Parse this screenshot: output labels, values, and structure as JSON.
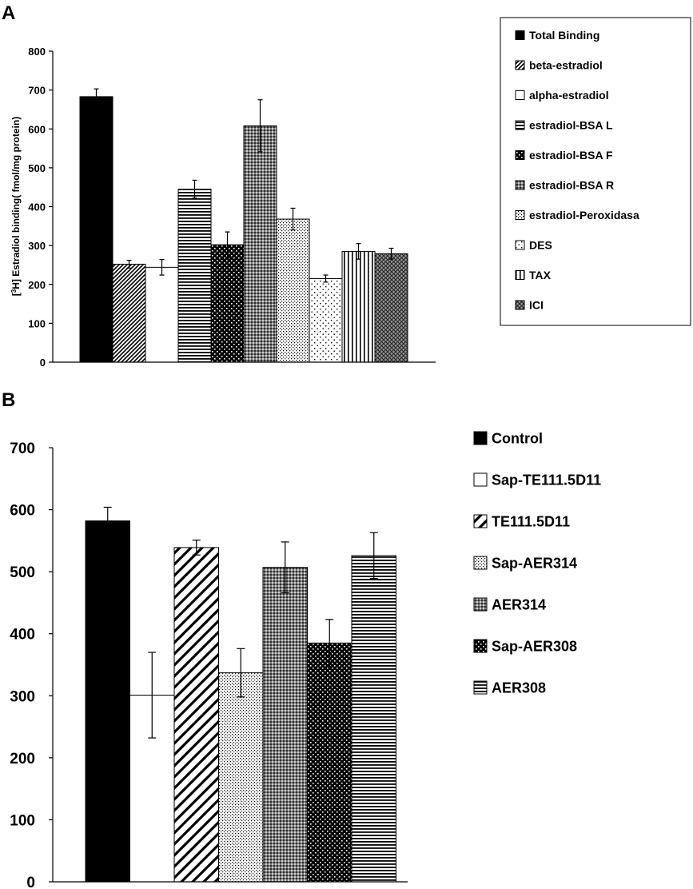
{
  "chart_data": [
    {
      "panel": "A",
      "type": "bar",
      "ylabel_sup": "3",
      "ylabel_pre": "[",
      "ylabel_mid": "H] Estradiol binding( fmol/mg protein)",
      "ylim": [
        0,
        800
      ],
      "yticks": [
        0,
        100,
        200,
        300,
        400,
        500,
        600,
        700,
        800
      ],
      "grid": false,
      "legend_position": "top-right, boxed",
      "series": [
        {
          "name": "Total Binding",
          "value": 683,
          "error": 20,
          "pattern": "solid"
        },
        {
          "name": "beta-estradiol",
          "value": 252,
          "error": 10,
          "pattern": "diag-dense"
        },
        {
          "name": "alpha-estradiol",
          "value": 244,
          "error": 20,
          "pattern": "white"
        },
        {
          "name": "estradiol-BSA L",
          "value": 445,
          "error": 23,
          "pattern": "hlines"
        },
        {
          "name": "estradiol-BSA F",
          "value": 302,
          "error": 33,
          "pattern": "dots-white-on-black"
        },
        {
          "name": "estradiol-BSA R",
          "value": 608,
          "error": 67,
          "pattern": "checker-gray"
        },
        {
          "name": "estradiol-Peroxidasa",
          "value": 368,
          "error": 28,
          "pattern": "dots-dense"
        },
        {
          "name": "DES",
          "value": 215,
          "error": 9,
          "pattern": "dots-sparse"
        },
        {
          "name": "TAX",
          "value": 285,
          "error": 20,
          "pattern": "vlines"
        },
        {
          "name": "ICI",
          "value": 279,
          "error": 14,
          "pattern": "crosshatch"
        }
      ]
    },
    {
      "panel": "B",
      "type": "bar",
      "ylabel": "",
      "ylim": [
        0,
        700
      ],
      "yticks": [
        0,
        100,
        200,
        300,
        400,
        500,
        600,
        700
      ],
      "grid": false,
      "legend_position": "right",
      "series": [
        {
          "name": "Control",
          "value": 582,
          "error": 22,
          "pattern": "solid"
        },
        {
          "name": "Sap-TE111.5D11",
          "value": 301,
          "error": 69,
          "pattern": "white"
        },
        {
          "name": "TE111.5D11",
          "value": 539,
          "error": 12,
          "pattern": "diag-wide"
        },
        {
          "name": "Sap-AER314",
          "value": 337,
          "error": 39,
          "pattern": "dots-dense"
        },
        {
          "name": "AER314",
          "value": 507,
          "error": 41,
          "pattern": "checker-gray"
        },
        {
          "name": "Sap-AER308",
          "value": 385,
          "error": 38,
          "pattern": "dots-white-on-black"
        },
        {
          "name": "AER308",
          "value": 526,
          "error": 37,
          "pattern": "hlines"
        }
      ]
    }
  ],
  "panels": {
    "a_label": "A",
    "b_label": "B"
  }
}
